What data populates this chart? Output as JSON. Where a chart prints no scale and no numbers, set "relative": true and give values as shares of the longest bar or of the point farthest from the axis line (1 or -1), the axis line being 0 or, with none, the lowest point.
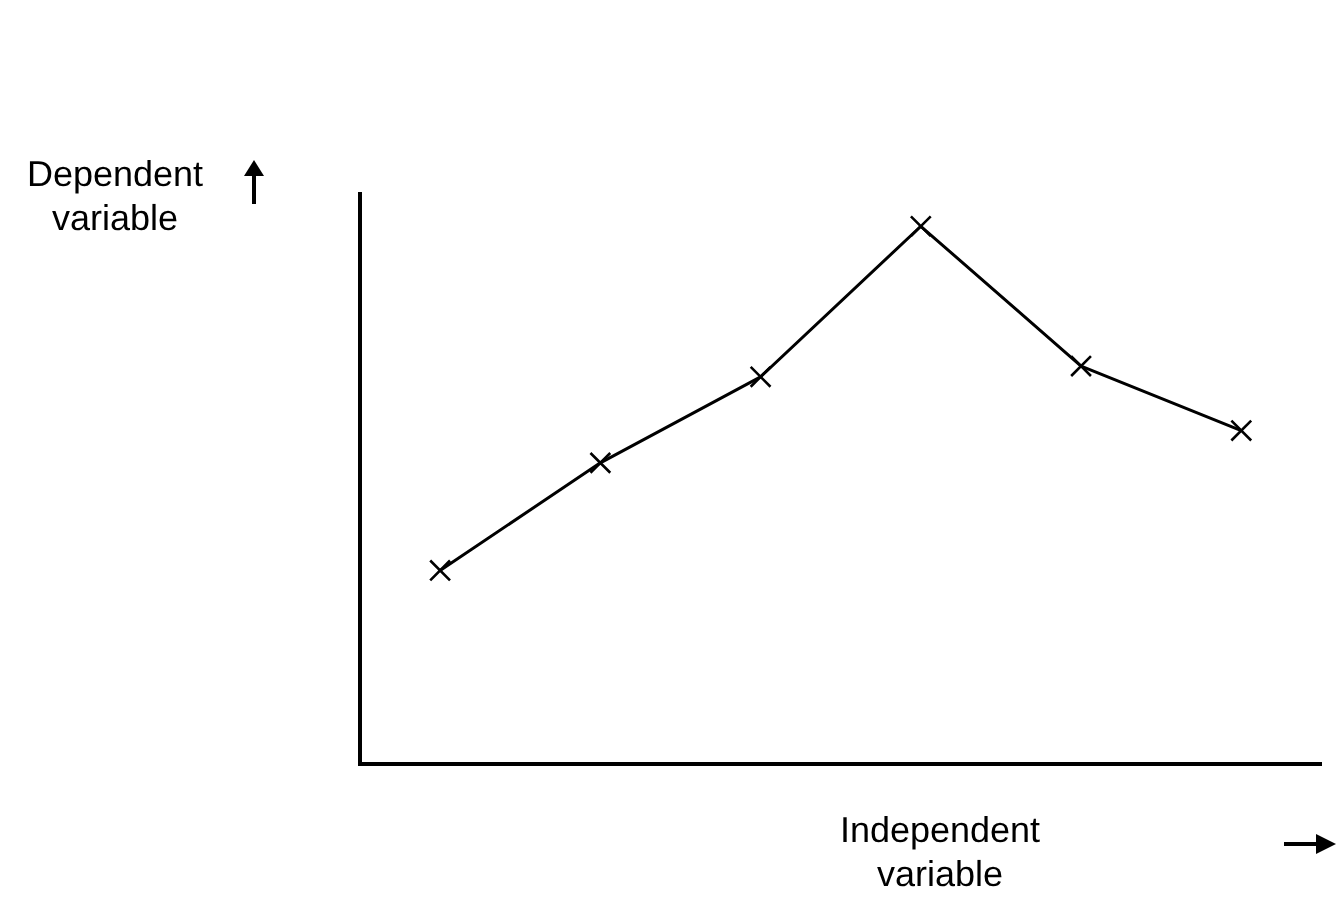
{
  "chart_data": {
    "type": "line",
    "relative": true,
    "xlabel": "Independent variable",
    "ylabel": "Dependent variable",
    "categories": [
      null,
      null,
      null,
      null,
      null,
      null
    ],
    "series": [
      {
        "color": "#000000",
        "values": [
          0.36,
          0.56,
          0.72,
          1,
          0.74,
          0.62
        ]
      }
    ],
    "marker": "cross",
    "line_style": "solid",
    "grid": false,
    "legend": false
  }
}
